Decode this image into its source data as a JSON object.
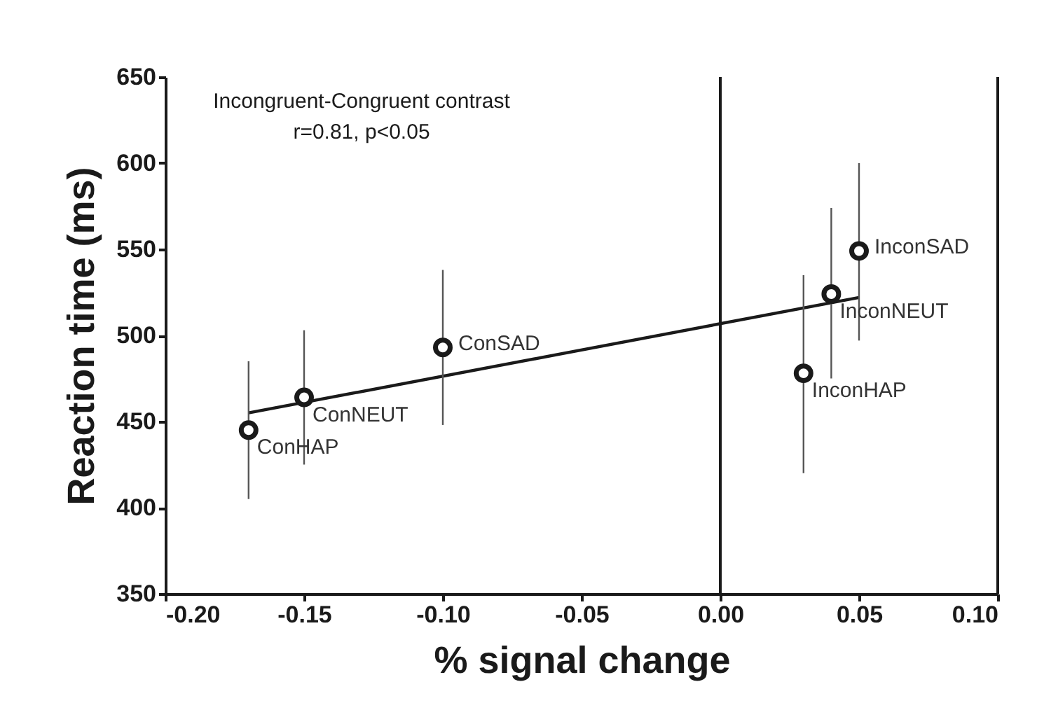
{
  "chart_data": {
    "type": "scatter",
    "xlabel": "% signal change",
    "ylabel": "Reaction time (ms)",
    "xlim": [
      -0.2,
      0.1
    ],
    "xticks": [
      {
        "value": -0.2,
        "label": "-0.20"
      },
      {
        "value": -0.15,
        "label": "-0.15"
      },
      {
        "value": -0.1,
        "label": "-0.10"
      },
      {
        "value": -0.05,
        "label": "-0.05"
      },
      {
        "value": 0,
        "label": "0.00"
      },
      {
        "value": 0.05,
        "label": "0.05"
      },
      {
        "value": 0.1,
        "label": "0.10"
      }
    ],
    "ylim": [
      350,
      650
    ],
    "yticks": [
      350,
      400,
      450,
      500,
      550,
      600,
      650
    ],
    "series": [
      {
        "color": "#1a1a1a",
        "x": [
          -0.17,
          -0.15,
          -0.1,
          0.03,
          0.04,
          0.05
        ],
        "values": [
          445,
          464,
          493,
          478,
          524,
          549
        ],
        "errors": [
          [
            405,
            485
          ],
          [
            425,
            503
          ],
          [
            448,
            538
          ],
          [
            420,
            535
          ],
          [
            475,
            574
          ],
          [
            497,
            600
          ]
        ],
        "marker": "circle"
      },
      {
        "type": "line",
        "color": "#1a1a1a",
        "x": [
          -0.17,
          0.05
        ],
        "values": [
          455,
          522
        ],
        "line_style": "solid",
        "marker": "none"
      }
    ],
    "ref_lines": [
      {
        "axis": "x",
        "value": 0,
        "color": "#1a1a1a",
        "line_style": "solid"
      }
    ],
    "annotations": [
      "Incongruent-Congruent contrast",
      "r=0.81, p<0.05",
      {
        "text": "ConHAP",
        "x": -0.17,
        "y": 445
      },
      {
        "text": "ConNEUT",
        "x": -0.15,
        "y": 464
      },
      {
        "text": "ConSAD",
        "x": -0.1,
        "y": 493
      },
      {
        "text": "InconHAP",
        "x": 0.03,
        "y": 478
      },
      {
        "text": "InconNEUT",
        "x": 0.04,
        "y": 524
      },
      {
        "text": "InconSAD",
        "x": 0.05,
        "y": 549
      }
    ],
    "grid": false
  }
}
